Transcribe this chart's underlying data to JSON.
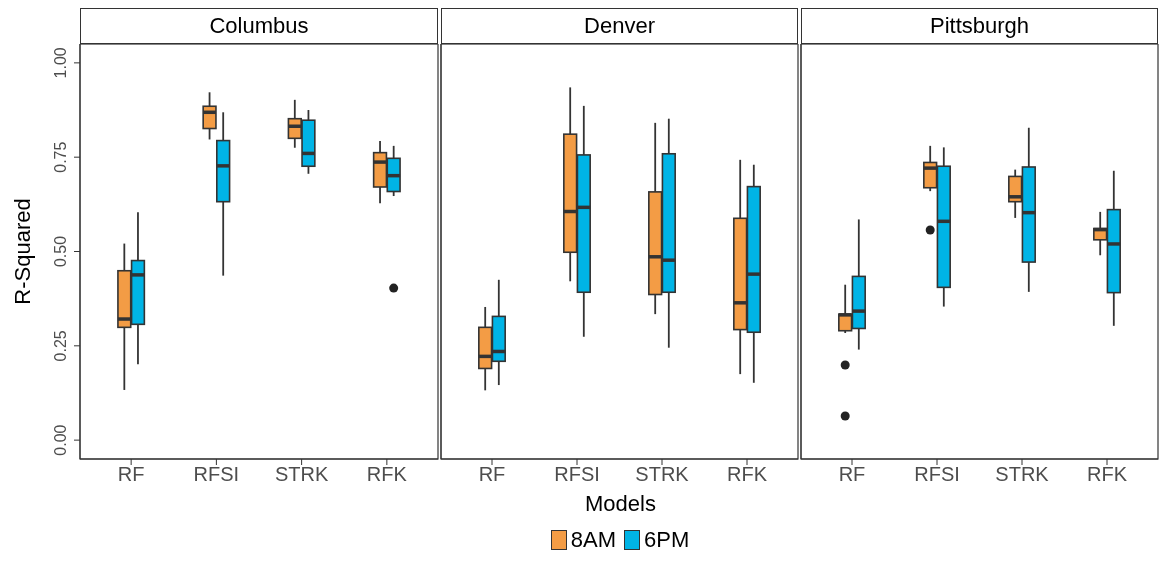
{
  "chart_data": [
    {
      "type": "box",
      "title": "Columbus",
      "ylabel": "R-Squared",
      "categories": [
        "RF",
        "RFSI",
        "STRK",
        "RFK"
      ],
      "ylim": [
        -0.05,
        1.05
      ],
      "yticks": [
        {
          "value": 0,
          "label": "0.00"
        },
        {
          "value": 0.25,
          "label": "0.25"
        },
        {
          "value": 0.5,
          "label": "0.50"
        },
        {
          "value": 0.75,
          "label": "0.75"
        },
        {
          "value": 1,
          "label": "1.00"
        }
      ],
      "grid": false,
      "series": [
        {
          "color": "#f39c45",
          "boxes": [
            {
              "low": 0.133,
              "q1": 0.299,
              "median": 0.321,
              "q3": 0.449,
              "high": 0.521
            },
            {
              "low": 0.797,
              "q1": 0.826,
              "median": 0.869,
              "q3": 0.885,
              "high": 0.922
            },
            {
              "low": 0.775,
              "q1": 0.8,
              "median": 0.832,
              "q3": 0.852,
              "high": 0.902
            },
            {
              "low": 0.628,
              "q1": 0.671,
              "median": 0.737,
              "q3": 0.762,
              "high": 0.793
            }
          ]
        },
        {
          "color": "#00b4e6",
          "boxes": [
            {
              "low": 0.201,
              "q1": 0.307,
              "median": 0.438,
              "q3": 0.476,
              "high": 0.604
            },
            {
              "low": 0.436,
              "q1": 0.632,
              "median": 0.727,
              "q3": 0.794,
              "high": 0.869
            },
            {
              "low": 0.706,
              "q1": 0.726,
              "median": 0.76,
              "q3": 0.848,
              "high": 0.875
            },
            {
              "low": 0.647,
              "q1": 0.659,
              "median": 0.701,
              "q3": 0.747,
              "high": 0.78,
              "outliers": [
                0.403
              ]
            }
          ]
        }
      ]
    },
    {
      "type": "box",
      "title": "Denver",
      "xlabel": "Models",
      "categories": [
        "RF",
        "RFSI",
        "STRK",
        "RFK"
      ],
      "ylim": [
        -0.05,
        1.05
      ],
      "tick_labels": "x",
      "grid": false,
      "legend": "bottom",
      "series": [
        {
          "name": "8AM",
          "color": "#f39c45",
          "boxes": [
            {
              "low": 0.132,
              "q1": 0.19,
              "median": 0.222,
              "q3": 0.299,
              "high": 0.353
            },
            {
              "low": 0.421,
              "q1": 0.498,
              "median": 0.606,
              "q3": 0.811,
              "high": 0.935
            },
            {
              "low": 0.334,
              "q1": 0.386,
              "median": 0.486,
              "q3": 0.658,
              "high": 0.841
            },
            {
              "low": 0.175,
              "q1": 0.293,
              "median": 0.364,
              "q3": 0.588,
              "high": 0.743
            }
          ]
        },
        {
          "name": "6PM",
          "color": "#00b4e6",
          "boxes": [
            {
              "low": 0.146,
              "q1": 0.209,
              "median": 0.235,
              "q3": 0.328,
              "high": 0.425
            },
            {
              "low": 0.274,
              "q1": 0.392,
              "median": 0.617,
              "q3": 0.756,
              "high": 0.886
            },
            {
              "low": 0.245,
              "q1": 0.392,
              "median": 0.477,
              "q3": 0.759,
              "high": 0.852
            },
            {
              "low": 0.152,
              "q1": 0.286,
              "median": 0.44,
              "q3": 0.672,
              "high": 0.73
            }
          ]
        }
      ]
    },
    {
      "type": "box",
      "title": "Pittsburgh",
      "categories": [
        "RF",
        "RFSI",
        "STRK",
        "RFK"
      ],
      "ylim": [
        -0.05,
        1.05
      ],
      "tick_labels": "x",
      "grid": false,
      "series": [
        {
          "color": "#f39c45",
          "boxes": [
            {
              "low": 0.284,
              "q1": 0.29,
              "median": 0.332,
              "q3": 0.334,
              "high": 0.412,
              "outliers": [
                0.199,
                0.064
              ]
            },
            {
              "low": 0.66,
              "q1": 0.669,
              "median": 0.721,
              "q3": 0.736,
              "high": 0.78,
              "outliers": [
                0.557
              ]
            },
            {
              "low": 0.589,
              "q1": 0.632,
              "median": 0.645,
              "q3": 0.699,
              "high": 0.717
            },
            {
              "low": 0.49,
              "q1": 0.531,
              "median": 0.558,
              "q3": 0.561,
              "high": 0.605
            }
          ]
        },
        {
          "color": "#00b4e6",
          "boxes": [
            {
              "low": 0.24,
              "q1": 0.296,
              "median": 0.342,
              "q3": 0.434,
              "high": 0.585
            },
            {
              "low": 0.354,
              "q1": 0.405,
              "median": 0.58,
              "q3": 0.726,
              "high": 0.776
            },
            {
              "low": 0.393,
              "q1": 0.472,
              "median": 0.603,
              "q3": 0.724,
              "high": 0.828
            },
            {
              "low": 0.303,
              "q1": 0.391,
              "median": 0.52,
              "q3": 0.611,
              "high": 0.714
            }
          ]
        }
      ]
    }
  ]
}
